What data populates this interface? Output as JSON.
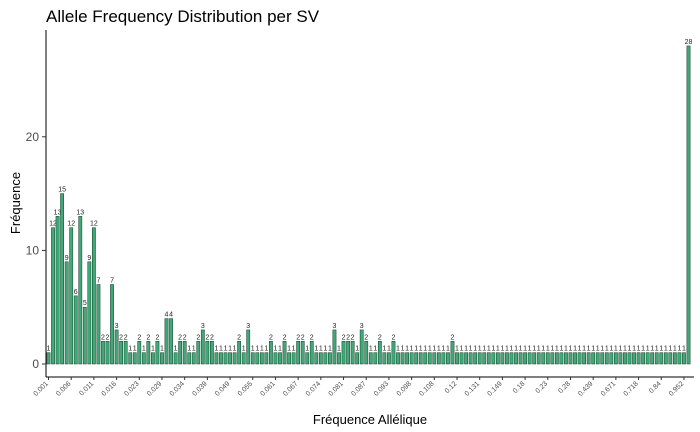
{
  "chart_data": {
    "type": "bar",
    "title": "Allele Frequency Distribution per SV",
    "xlabel": "Fréquence Allélique",
    "ylabel": "Fréquence",
    "ylim": [
      -1,
      30
    ],
    "yticks": [
      0,
      10,
      20
    ],
    "grid": false,
    "bar_color": "#3daa78",
    "bar_edge_color": "#1f3b2c",
    "x_tick_labels": [
      "0.001",
      "0.006",
      "0.011",
      "0.016",
      "0.023",
      "0.029",
      "0.034",
      "0.039",
      "0.049",
      "0.055",
      "0.061",
      "0.067",
      "0.074",
      "0.081",
      "0.087",
      "0.093",
      "0.098",
      "0.108",
      "0.12",
      "0.131",
      "0.149",
      "0.18",
      "0.23",
      "0.28",
      "0.439",
      "0.671",
      "0.718",
      "0.84",
      "0.952"
    ],
    "values": [
      1,
      12,
      13,
      15,
      9,
      12,
      6,
      13,
      5,
      9,
      12,
      7,
      2,
      2,
      7,
      3,
      2,
      2,
      1,
      1,
      2,
      1,
      2,
      1,
      2,
      1,
      4,
      4,
      1,
      2,
      2,
      1,
      1,
      2,
      3,
      2,
      2,
      1,
      1,
      1,
      1,
      1,
      2,
      1,
      3,
      1,
      1,
      1,
      1,
      2,
      1,
      1,
      2,
      1,
      1,
      2,
      2,
      1,
      2,
      1,
      1,
      1,
      1,
      3,
      1,
      2,
      2,
      2,
      1,
      3,
      2,
      1,
      1,
      2,
      1,
      1,
      2,
      1,
      1,
      1,
      1,
      1,
      1,
      1,
      1,
      1,
      1,
      1,
      1,
      2,
      1,
      1,
      1,
      1,
      1,
      1,
      1,
      1,
      1,
      1,
      1,
      1,
      1,
      1,
      1,
      1,
      1,
      1,
      1,
      1,
      1,
      1,
      1,
      1,
      1,
      1,
      1,
      1,
      1,
      1,
      1,
      1,
      1,
      1,
      1,
      1,
      1,
      1,
      1,
      1,
      1,
      1,
      1,
      1,
      1,
      1,
      1,
      1,
      1,
      1,
      1,
      28
    ]
  }
}
